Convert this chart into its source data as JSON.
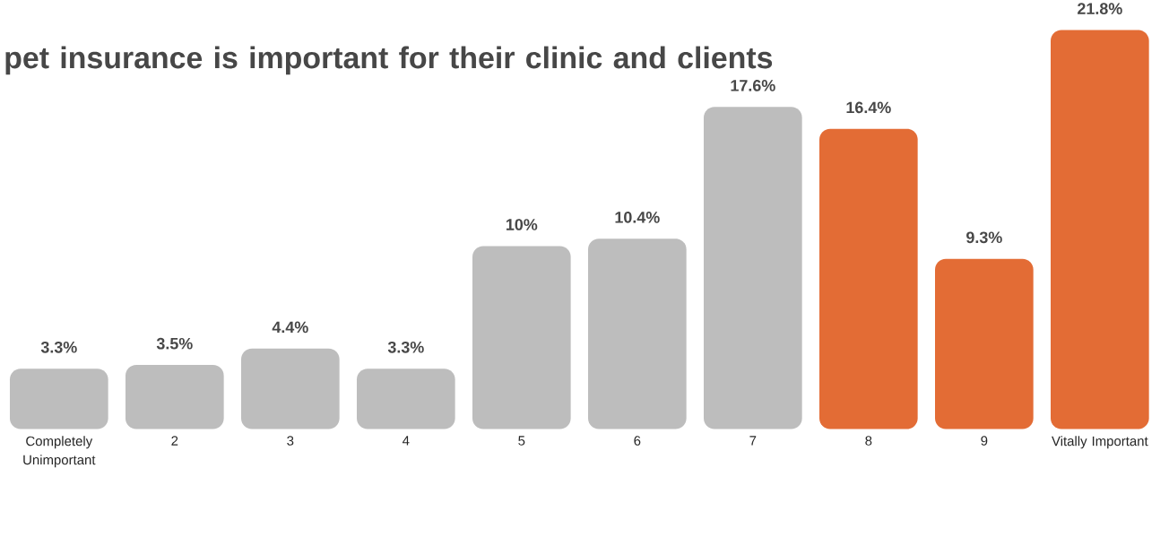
{
  "chart_data": {
    "type": "bar",
    "title": "pet insurance is important for their clinic and clients",
    "categories": [
      "Completely Unimportant",
      "2",
      "3",
      "4",
      "5",
      "6",
      "7",
      "8",
      "9",
      "Vitally Important"
    ],
    "values": [
      3.3,
      3.5,
      4.4,
      3.3,
      10,
      10.4,
      17.6,
      16.4,
      9.3,
      21.8
    ],
    "value_labels": [
      "3.3%",
      "3.5%",
      "4.4%",
      "3.3%",
      "10%",
      "10.4%",
      "17.6%",
      "16.4%",
      "9.3%",
      "21.8%"
    ],
    "colors": [
      "#bdbdbd",
      "#bdbdbd",
      "#bdbdbd",
      "#bdbdbd",
      "#bdbdbd",
      "#bdbdbd",
      "#bdbdbd",
      "#e36c35",
      "#e36c35",
      "#e36c35"
    ]
  }
}
